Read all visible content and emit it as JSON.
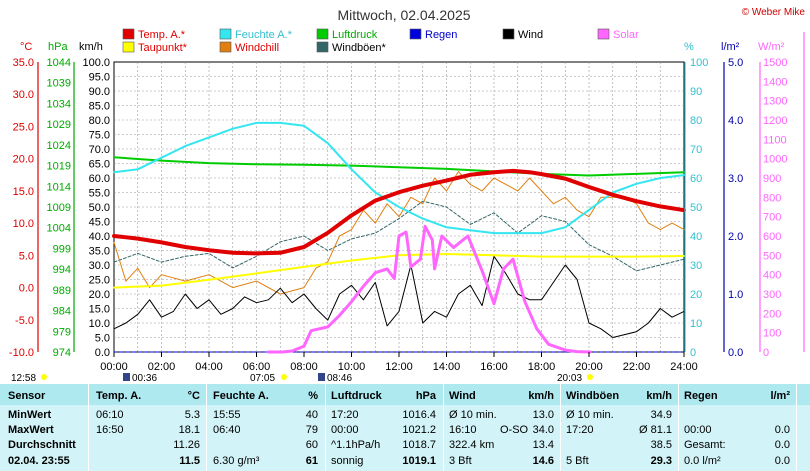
{
  "title": "Mittwoch, 02.04.2025",
  "credit": "© Weber Mike",
  "legend": [
    {
      "label": "Temp. A.*",
      "color": "#e00000"
    },
    {
      "label": "Feuchte A.*",
      "color": "#33e6f0"
    },
    {
      "label": "Luftdruck",
      "color": "#00cc00"
    },
    {
      "label": "Regen",
      "color": "#0000dd"
    },
    {
      "label": "Wind",
      "color": "#000000"
    },
    {
      "label": "Solar",
      "color": "#ff66ff"
    },
    {
      "label": "Taupunkt*",
      "color": "#ffff00"
    },
    {
      "label": "Windchill",
      "color": "#e07f10"
    },
    {
      "label": "Windböen*",
      "color": "#336666"
    }
  ],
  "axis_units": {
    "temp": "°C",
    "press": "hPa",
    "wind": "km/h",
    "hum": "%",
    "rain": "l/m²",
    "solar": "W/m²"
  },
  "temp_ticks": [
    "35.0",
    "30.0",
    "25.0",
    "20.0",
    "15.0",
    "10.0",
    "5.0",
    "0.0",
    "-5.0",
    "-10.0"
  ],
  "press_ticks": [
    "1044",
    "1039",
    "1034",
    "1029",
    "1024",
    "1019",
    "1014",
    "1009",
    "1004",
    "999",
    "994",
    "989",
    "984",
    "979",
    "974"
  ],
  "wind_ticks": [
    "100.0",
    "95.0",
    "90.0",
    "85.0",
    "80.0",
    "75.0",
    "70.0",
    "65.0",
    "60.0",
    "55.0",
    "50.0",
    "45.0",
    "40.0",
    "35.0",
    "30.0",
    "25.0",
    "20.0",
    "15.0",
    "10.0",
    "5.0",
    "0.0"
  ],
  "hum_ticks": [
    "100",
    "90",
    "80",
    "70",
    "60",
    "50",
    "40",
    "30",
    "20",
    "10",
    "0"
  ],
  "rain_ticks": [
    "5.0",
    "4.0",
    "3.0",
    "2.0",
    "1.0",
    "0.0"
  ],
  "solar_ticks": [
    "1500",
    "1400",
    "1300",
    "1200",
    "1100",
    "1000",
    "900",
    "800",
    "700",
    "600",
    "500",
    "400",
    "300",
    "200",
    "100",
    "0"
  ],
  "time_ticks": [
    "00:00",
    "02:00",
    "04:00",
    "06:00",
    "08:00",
    "10:00",
    "12:00",
    "14:00",
    "16:00",
    "18:00",
    "20:00",
    "22:00",
    "24:00"
  ],
  "events": {
    "moonrise": "12:58",
    "sunrise": "07:05",
    "sunset": "20:03",
    "mark1": "00:36",
    "mark2": "08:46"
  },
  "chart_data": {
    "type": "line",
    "x_unit": "hours",
    "xlim": [
      0,
      24
    ],
    "series": [
      {
        "name": "Temp. A.*",
        "axis": "temp",
        "ylim": [
          -10,
          35
        ],
        "points": [
          [
            0,
            8.0
          ],
          [
            1,
            7.6
          ],
          [
            2,
            7.0
          ],
          [
            3,
            6.3
          ],
          [
            4,
            5.8
          ],
          [
            5,
            5.4
          ],
          [
            6,
            5.3
          ],
          [
            7,
            5.4
          ],
          [
            8,
            6.3
          ],
          [
            9,
            8.5
          ],
          [
            10,
            11.2
          ],
          [
            11,
            13.5
          ],
          [
            12,
            14.8
          ],
          [
            13,
            15.8
          ],
          [
            14,
            16.6
          ],
          [
            15,
            17.5
          ],
          [
            16,
            17.9
          ],
          [
            16.8,
            18.1
          ],
          [
            17.5,
            17.9
          ],
          [
            18,
            17.6
          ],
          [
            19,
            16.9
          ],
          [
            20,
            15.6
          ],
          [
            21,
            14.4
          ],
          [
            22,
            13.4
          ],
          [
            23,
            12.6
          ],
          [
            24,
            12.0
          ]
        ]
      },
      {
        "name": "Feuchte A.*",
        "axis": "hum",
        "ylim": [
          0,
          100
        ],
        "points": [
          [
            0,
            62
          ],
          [
            1,
            63
          ],
          [
            2,
            67
          ],
          [
            3,
            71
          ],
          [
            4,
            74
          ],
          [
            5,
            77
          ],
          [
            6,
            79
          ],
          [
            7,
            79
          ],
          [
            8,
            78
          ],
          [
            9,
            72
          ],
          [
            10,
            63
          ],
          [
            11,
            55
          ],
          [
            12,
            50
          ],
          [
            13,
            46
          ],
          [
            14,
            43
          ],
          [
            15,
            42
          ],
          [
            16,
            41
          ],
          [
            17,
            41
          ],
          [
            18,
            41
          ],
          [
            19,
            43
          ],
          [
            20,
            49
          ],
          [
            21,
            55
          ],
          [
            22,
            58
          ],
          [
            23,
            60
          ],
          [
            24,
            61
          ]
        ]
      },
      {
        "name": "Luftdruck",
        "axis": "press",
        "ylim": [
          974,
          1044
        ],
        "points": [
          [
            0,
            1021.0
          ],
          [
            2,
            1020.2
          ],
          [
            4,
            1019.6
          ],
          [
            6,
            1019.3
          ],
          [
            8,
            1019.2
          ],
          [
            10,
            1019.0
          ],
          [
            12,
            1018.6
          ],
          [
            14,
            1018.2
          ],
          [
            16,
            1017.6
          ],
          [
            18,
            1017.0
          ],
          [
            20,
            1016.6
          ],
          [
            22,
            1017.0
          ],
          [
            24,
            1017.4
          ]
        ]
      },
      {
        "name": "Taupunkt*",
        "axis": "temp",
        "ylim": [
          -10,
          35
        ],
        "points": [
          [
            0,
            0.0
          ],
          [
            2,
            0.3
          ],
          [
            4,
            1.2
          ],
          [
            6,
            2.2
          ],
          [
            8,
            3.2
          ],
          [
            10,
            4.2
          ],
          [
            12,
            5.0
          ],
          [
            14,
            5.2
          ],
          [
            16,
            5.0
          ],
          [
            18,
            4.8
          ],
          [
            20,
            4.8
          ],
          [
            22,
            4.8
          ],
          [
            24,
            4.9
          ]
        ]
      },
      {
        "name": "Wind",
        "axis": "wind",
        "ylim": [
          0,
          100
        ],
        "points": [
          [
            0,
            8
          ],
          [
            0.5,
            10
          ],
          [
            1,
            13
          ],
          [
            1.5,
            18
          ],
          [
            2,
            12
          ],
          [
            2.5,
            14
          ],
          [
            3,
            20
          ],
          [
            3.5,
            15
          ],
          [
            4,
            18
          ],
          [
            4.5,
            13
          ],
          [
            5,
            15
          ],
          [
            5.5,
            19
          ],
          [
            6,
            17
          ],
          [
            6.5,
            18
          ],
          [
            7,
            22
          ],
          [
            7.5,
            17
          ],
          [
            8,
            20
          ],
          [
            8.5,
            15
          ],
          [
            9,
            11
          ],
          [
            9.5,
            20
          ],
          [
            10,
            23
          ],
          [
            10.5,
            18
          ],
          [
            11,
            24
          ],
          [
            11.5,
            9
          ],
          [
            12,
            14
          ],
          [
            12.5,
            30
          ],
          [
            13,
            10
          ],
          [
            13.5,
            14
          ],
          [
            14,
            12
          ],
          [
            14.5,
            20
          ],
          [
            15,
            23
          ],
          [
            15.5,
            16
          ],
          [
            16,
            33
          ],
          [
            16.5,
            27
          ],
          [
            17,
            20
          ],
          [
            17.5,
            18
          ],
          [
            18,
            18
          ],
          [
            18.5,
            24
          ],
          [
            19,
            30
          ],
          [
            19.5,
            25
          ],
          [
            20,
            10
          ],
          [
            20.5,
            8
          ],
          [
            21,
            5
          ],
          [
            21.5,
            6
          ],
          [
            22,
            7
          ],
          [
            22.5,
            10
          ],
          [
            23,
            15
          ],
          [
            23.5,
            12
          ],
          [
            24,
            14
          ]
        ]
      },
      {
        "name": "Windchill",
        "axis": "temp",
        "ylim": [
          -10,
          35
        ],
        "points": [
          [
            0,
            7
          ],
          [
            0.5,
            1
          ],
          [
            1,
            3
          ],
          [
            1.5,
            0
          ],
          [
            2,
            2
          ],
          [
            3,
            1
          ],
          [
            4,
            2
          ],
          [
            5,
            0
          ],
          [
            6,
            1
          ],
          [
            7,
            -1
          ],
          [
            8,
            0
          ],
          [
            8.5,
            3
          ],
          [
            9,
            4
          ],
          [
            9.5,
            8
          ],
          [
            10,
            9
          ],
          [
            10.5,
            12
          ],
          [
            11,
            10
          ],
          [
            11.5,
            13
          ],
          [
            12,
            11
          ],
          [
            12.5,
            14
          ],
          [
            13,
            13
          ],
          [
            13.5,
            17
          ],
          [
            14,
            15
          ],
          [
            14.5,
            18
          ],
          [
            15,
            16
          ],
          [
            15.5,
            15
          ],
          [
            16,
            17
          ],
          [
            16.5,
            16
          ],
          [
            17,
            15
          ],
          [
            17.5,
            17
          ],
          [
            18,
            15
          ],
          [
            18.5,
            13
          ],
          [
            19,
            14
          ],
          [
            19.5,
            12
          ],
          [
            20,
            11
          ],
          [
            20.5,
            14
          ],
          [
            21,
            14
          ],
          [
            21.5,
            14
          ],
          [
            22,
            13
          ],
          [
            22.5,
            10
          ],
          [
            23,
            9
          ],
          [
            23.5,
            10
          ],
          [
            24,
            9
          ]
        ]
      },
      {
        "name": "Windböen*",
        "axis": "wind",
        "ylim": [
          0,
          100
        ],
        "points": [
          [
            0,
            31
          ],
          [
            1,
            34
          ],
          [
            2,
            31
          ],
          [
            3,
            33
          ],
          [
            4,
            34
          ],
          [
            5,
            29
          ],
          [
            6,
            33
          ],
          [
            7,
            38
          ],
          [
            8,
            40
          ],
          [
            9,
            35
          ],
          [
            10,
            39
          ],
          [
            11,
            41
          ],
          [
            12,
            46
          ],
          [
            13,
            52
          ],
          [
            14,
            50
          ],
          [
            15,
            44
          ],
          [
            16,
            48
          ],
          [
            17,
            41
          ],
          [
            18,
            47
          ],
          [
            19,
            45
          ],
          [
            20,
            37
          ],
          [
            21,
            33
          ],
          [
            22,
            28
          ],
          [
            23,
            30
          ],
          [
            24,
            32
          ]
        ]
      },
      {
        "name": "Solar",
        "axis": "solar",
        "ylim": [
          0,
          1500
        ],
        "points": [
          [
            6.5,
            0
          ],
          [
            7.1,
            0
          ],
          [
            7.5,
            5
          ],
          [
            8,
            30
          ],
          [
            8.3,
            110
          ],
          [
            9,
            130
          ],
          [
            9.5,
            190
          ],
          [
            10,
            260
          ],
          [
            10.5,
            340
          ],
          [
            11,
            410
          ],
          [
            11.5,
            430
          ],
          [
            11.8,
            380
          ],
          [
            12,
            600
          ],
          [
            12.3,
            620
          ],
          [
            12.5,
            440
          ],
          [
            12.9,
            480
          ],
          [
            13.1,
            650
          ],
          [
            13.4,
            580
          ],
          [
            13.5,
            430
          ],
          [
            13.8,
            600
          ],
          [
            14.3,
            540
          ],
          [
            14.9,
            600
          ],
          [
            15.5,
            420
          ],
          [
            16,
            250
          ],
          [
            16.4,
            430
          ],
          [
            16.8,
            480
          ],
          [
            17.3,
            260
          ],
          [
            17.8,
            120
          ],
          [
            18.3,
            40
          ],
          [
            19,
            10
          ],
          [
            19.5,
            2
          ],
          [
            20.05,
            0
          ]
        ]
      },
      {
        "name": "Regen",
        "axis": "rain",
        "ylim": [
          0,
          5
        ],
        "points": [
          [
            0,
            0.0
          ],
          [
            24,
            0.0
          ]
        ]
      }
    ]
  },
  "table": {
    "headers": {
      "sensor": "Sensor",
      "temp": "Temp. A.",
      "temp_u": "°C",
      "hum": "Feuchte A.",
      "hum_u": "%",
      "press": "Luftdruck",
      "press_u": "hPa",
      "wind": "Wind",
      "wind_u": "km/h",
      "gust": "Windböen",
      "gust_u": "km/h",
      "rain": "Regen",
      "rain_u": "l/m²"
    },
    "rows": [
      {
        "label": "MinWert",
        "temp_t": "06:10",
        "temp_v": "5.3",
        "hum_t": "15:55",
        "hum_v": "40",
        "press_t": "17:20",
        "press_v": "1016.4",
        "wind_t": "Ø 10 min.",
        "wind_m": "",
        "wind_v": "13.0",
        "gust_t": "Ø 10 min.",
        "gust_v": "34.9",
        "rain_t": "",
        "rain_v": ""
      },
      {
        "label": "MaxWert",
        "temp_t": "16:50",
        "temp_v": "18.1",
        "hum_t": "06:40",
        "hum_v": "79",
        "press_t": "00:00",
        "press_v": "1021.2",
        "wind_t": "16:10",
        "wind_m": "O-SO",
        "wind_v": "34.0",
        "gust_t": "17:20",
        "gust_v": "Ø 81.1",
        "rain_t": "00:00",
        "rain_v": "0.0"
      },
      {
        "label": "Durchschnitt",
        "temp_t": "",
        "temp_v": "11.26",
        "hum_t": "",
        "hum_v": "60",
        "press_t": "^1.1hPa/h",
        "press_v": "1018.7",
        "wind_t": "322.4 km",
        "wind_m": "",
        "wind_v": "13.4",
        "gust_t": "",
        "gust_v": "38.5",
        "rain_t": "Gesamt:",
        "rain_v": "0.0"
      },
      {
        "label": "02.04. 23:55",
        "temp_t": "",
        "temp_v": "11.5",
        "hum_t": "6.30 g/m³",
        "hum_v": "61",
        "press_t": "sonnig",
        "press_v": "1019.1",
        "wind_t": "3 Bft",
        "wind_m": "",
        "wind_v": "14.6",
        "gust_t": "5 Bft",
        "gust_v": "29.3",
        "rain_t": "0.0 l/m²",
        "rain_v": "0.0"
      }
    ]
  }
}
